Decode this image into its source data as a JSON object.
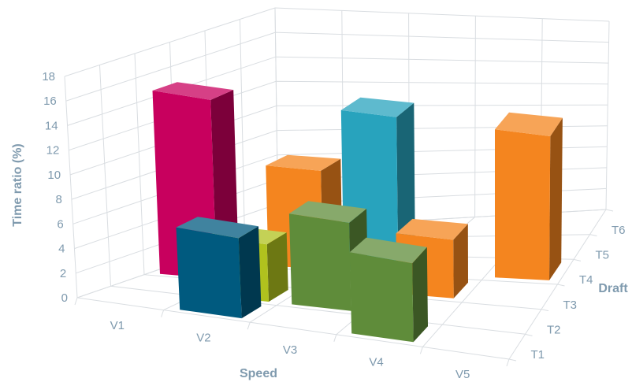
{
  "chart_data": {
    "type": "bar",
    "subtype": "3d-column",
    "xlabel": "Speed",
    "zlabel": "Draft",
    "ylabel": "Time ratio (%)",
    "x_categories": [
      "V1",
      "V2",
      "V3",
      "V4",
      "V5"
    ],
    "z_categories": [
      "T1",
      "T2",
      "T3",
      "T4",
      "T5",
      "T6"
    ],
    "ylim": [
      0,
      18
    ],
    "yticks": [
      "0",
      "2",
      "4",
      "6",
      "8",
      "10",
      "12",
      "14",
      "16",
      "18"
    ],
    "grid": true,
    "legend": "none",
    "bars": [
      {
        "x": "V2",
        "z": "T1",
        "value": 7.0,
        "color": "#005a7f"
      },
      {
        "x": "V2",
        "z": "T2",
        "value": 5.0,
        "color": "#b0c21e"
      },
      {
        "x": "V1",
        "z": "T3",
        "value": 15.0,
        "color": "#c8005e"
      },
      {
        "x": "V2",
        "z": "T4",
        "value": 8.5,
        "color": "#f4851f"
      },
      {
        "x": "V3",
        "z": "T4",
        "value": 14.0,
        "color": "#28a3bd"
      },
      {
        "x": "V3",
        "z": "T2",
        "value": 8.0,
        "color": "#5f8c3a"
      },
      {
        "x": "V4",
        "z": "T3",
        "value": 5.5,
        "color": "#f4851f"
      },
      {
        "x": "V4",
        "z": "T1",
        "value": 7.5,
        "color": "#5f8c3a"
      },
      {
        "x": "V5",
        "z": "T4",
        "value": 14.0,
        "color": "#f4851f"
      }
    ]
  }
}
